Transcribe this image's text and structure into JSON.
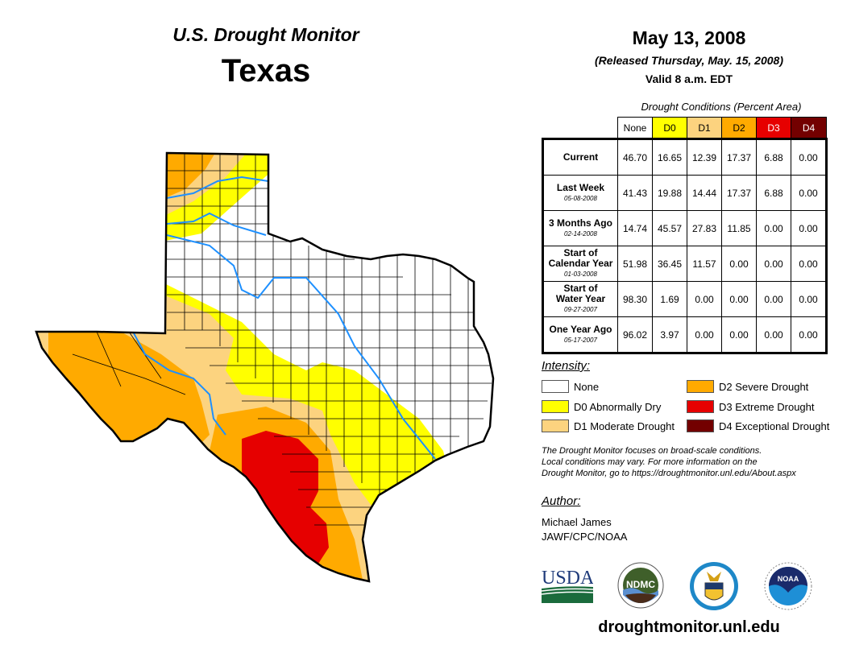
{
  "header": {
    "product": "U.S. Drought Monitor",
    "region": "Texas",
    "date": "May 13, 2008",
    "released": "(Released Thursday, May. 15, 2008)",
    "valid": "Valid 8 a.m. EDT"
  },
  "table": {
    "caption": "Drought Conditions (Percent Area)",
    "columns": [
      {
        "label": "None",
        "color": "#ffffff",
        "text_color": "#000000"
      },
      {
        "label": "D0",
        "color": "#ffff00",
        "text_color": "#000000"
      },
      {
        "label": "D1",
        "color": "#fcd37f",
        "text_color": "#000000"
      },
      {
        "label": "D2",
        "color": "#ffaa00",
        "text_color": "#000000"
      },
      {
        "label": "D3",
        "color": "#e60000",
        "text_color": "#ffffff"
      },
      {
        "label": "D4",
        "color": "#730000",
        "text_color": "#ffffff"
      }
    ],
    "rows": [
      {
        "label1": "Current",
        "label2": "",
        "date": "",
        "values": [
          "46.70",
          "16.65",
          "12.39",
          "17.37",
          "6.88",
          "0.00"
        ]
      },
      {
        "label1": "Last Week",
        "label2": "",
        "date": "05-08-2008",
        "values": [
          "41.43",
          "19.88",
          "14.44",
          "17.37",
          "6.88",
          "0.00"
        ]
      },
      {
        "label1": "3 Months Ago",
        "label2": "",
        "date": "02-14-2008",
        "values": [
          "14.74",
          "45.57",
          "27.83",
          "11.85",
          "0.00",
          "0.00"
        ]
      },
      {
        "label1": "Start of",
        "label2": "Calendar Year",
        "date": "01-03-2008",
        "values": [
          "51.98",
          "36.45",
          "11.57",
          "0.00",
          "0.00",
          "0.00"
        ]
      },
      {
        "label1": "Start of",
        "label2": "Water Year",
        "date": "09-27-2007",
        "values": [
          "98.30",
          "1.69",
          "0.00",
          "0.00",
          "0.00",
          "0.00"
        ]
      },
      {
        "label1": "One Year Ago",
        "label2": "",
        "date": "05-17-2007",
        "values": [
          "96.02",
          "3.97",
          "0.00",
          "0.00",
          "0.00",
          "0.00"
        ]
      }
    ]
  },
  "legend": {
    "title": "Intensity:",
    "items": [
      {
        "label": "None",
        "color": "#ffffff"
      },
      {
        "label": "D0 Abnormally Dry",
        "color": "#ffff00"
      },
      {
        "label": "D1 Moderate Drought",
        "color": "#fcd37f"
      },
      {
        "label": "D2 Severe Drought",
        "color": "#ffaa00"
      },
      {
        "label": "D3 Extreme Drought",
        "color": "#e60000"
      },
      {
        "label": "D4 Exceptional Drought",
        "color": "#730000"
      }
    ]
  },
  "note": {
    "line1": "The Drought Monitor focuses on broad-scale conditions.",
    "line2": "Local conditions may vary. For more information on the",
    "line3": "Drought Monitor, go to https://droughtmonitor.unl.edu/About.aspx"
  },
  "author": {
    "title": "Author:",
    "name": "Michael James",
    "org": "JAWF/CPC/NOAA"
  },
  "logos": {
    "usda": "USDA",
    "ndmc": "NDMC",
    "noaa": "NOAA"
  },
  "footer": {
    "url": "droughtmonitor.unl.edu"
  },
  "colors": {
    "river": "#1e90ff",
    "border": "#000000"
  }
}
